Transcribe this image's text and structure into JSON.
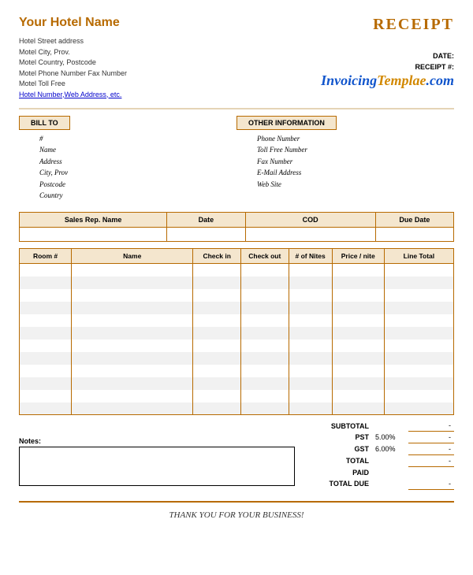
{
  "header": {
    "hotel_name": "Your Hotel Name",
    "receipt_title": "RECEIPT",
    "address": {
      "street": "Hotel  Street address",
      "city": "Motel City, Prov.",
      "country": "Motel Country, Postcode",
      "phone": "Motel Phone Number   Fax Number",
      "tollfree": "Motel Toll Free",
      "link": "Hotel Number,Web Address, etc."
    },
    "meta": {
      "date_label": "DATE:",
      "receipt_no_label": "RECEIPT #:"
    },
    "watermark": {
      "p1": "Invoicing",
      "p2": "Templae",
      "p3": ".com"
    }
  },
  "sections": {
    "bill_to": {
      "title": "BILL TO",
      "fields": [
        "#",
        "Name",
        "Address",
        "City, Prov",
        "Postcode",
        "Country"
      ]
    },
    "other_info": {
      "title": "OTHER INFORMATION",
      "fields": [
        "Phone Number",
        "Toll Free Number",
        "Fax Number",
        "E-Mail Address",
        "Web Site"
      ]
    }
  },
  "meta_table": {
    "columns": [
      "Sales Rep. Name",
      "Date",
      "COD",
      "Due Date"
    ],
    "widths": [
      "34%",
      "18%",
      "30%",
      "18%"
    ]
  },
  "items_table": {
    "columns": [
      "Room #",
      "Name",
      "Check in",
      "Check out",
      "# of Nites",
      "Price / nite",
      "Line Total"
    ],
    "widths": [
      "12%",
      "28%",
      "11%",
      "11%",
      "10%",
      "12%",
      "16%"
    ],
    "row_count": 12,
    "stripe_color": "#f1f1f1",
    "border_color": "#b76a00",
    "header_bg": "#f4e6ce"
  },
  "totals": {
    "rows": [
      {
        "label": "SUBTOTAL",
        "rate": "",
        "value": "-"
      },
      {
        "label": "PST",
        "rate": "5.00%",
        "value": "-"
      },
      {
        "label": "GST",
        "rate": "6.00%",
        "value": "-"
      },
      {
        "label": "TOTAL",
        "rate": "",
        "value": "-"
      },
      {
        "label": "PAID",
        "rate": "",
        "value": ""
      },
      {
        "label": "TOTAL DUE",
        "rate": "",
        "value": "-"
      }
    ],
    "notes_label": "Notes:"
  },
  "footer": {
    "thanks": "THANK YOU FOR YOUR BUSINESS!"
  },
  "styling": {
    "accent": "#b76a00",
    "header_bg": "#f4e6ce",
    "page_bg": "#ffffff",
    "stripe": "#f1f1f1",
    "link": "#0000cc",
    "wm_blue": "#1155cc",
    "wm_gold": "#d28800"
  }
}
